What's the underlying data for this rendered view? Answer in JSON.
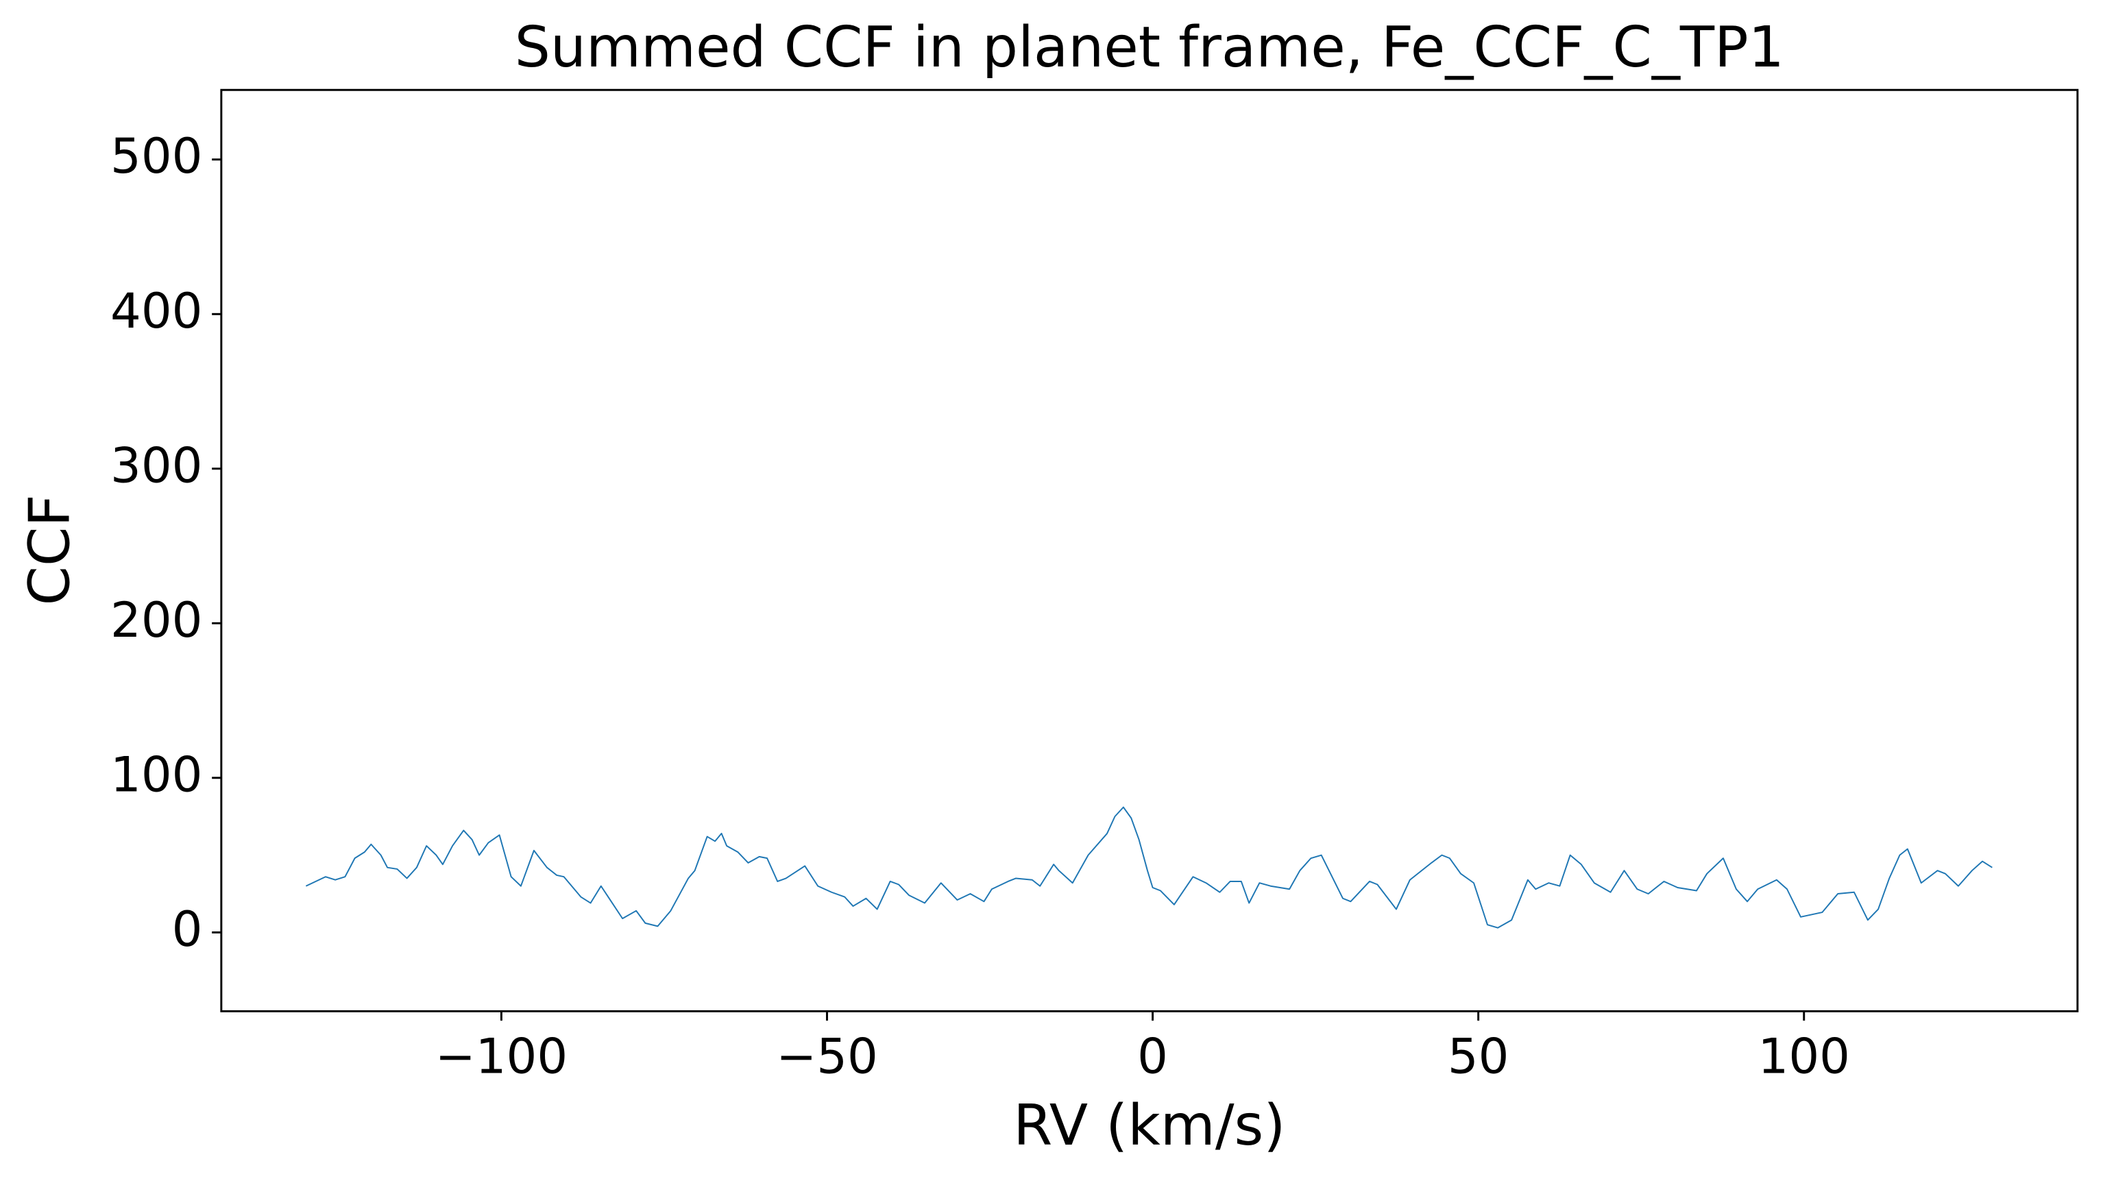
{
  "chart_data": {
    "type": "line",
    "title": "Summed CCF in planet frame, Fe_CCF_C_TP1",
    "xlabel": "RV (km/s)",
    "ylabel": "CCF",
    "x": [
      -130,
      -128.5,
      -127,
      -125.5,
      -124,
      -122.5,
      -121,
      -120,
      -118.5,
      -117.5,
      -116,
      -114.5,
      -113,
      -111.5,
      -110,
      -109,
      -107.5,
      -105.8,
      -104.5,
      -103.4,
      -102,
      -100.3,
      -98.5,
      -97,
      -95,
      -93,
      -91.5,
      -90.4,
      -87.8,
      -86.3,
      -84.7,
      -81.4,
      -79.3,
      -77.9,
      -76,
      -74,
      -71.3,
      -70.3,
      -68.4,
      -67.2,
      -66.2,
      -65.4,
      -63.7,
      -62.1,
      -60.4,
      -59.2,
      -57.6,
      -56.3,
      -53.4,
      -51.4,
      -49.3,
      -47.3,
      -46,
      -44,
      -42.3,
      -40.3,
      -39,
      -37.4,
      -35,
      -32.5,
      -30,
      -28,
      -25.9,
      -24.7,
      -22.2,
      -21,
      -18.5,
      -17.3,
      -15.2,
      -14.4,
      -12.3,
      -9.9,
      -7,
      -5.8,
      -4.5,
      -3.3,
      -2.1,
      -0.8,
      0,
      1.2,
      3.3,
      6.2,
      8.2,
      10.3,
      11.9,
      13.6,
      14.8,
      16.4,
      18.1,
      21,
      22.6,
      24.3,
      25.9,
      29.2,
      30.4,
      33.3,
      34.5,
      37.4,
      39.5,
      42.8,
      44.4,
      45.6,
      47.3,
      49.3,
      51.4,
      53,
      55.1,
      57.6,
      58.8,
      60.8,
      62.5,
      64.1,
      65.8,
      67.8,
      70.3,
      72.4,
      74.4,
      76.1,
      78.5,
      80.6,
      83.5,
      85.1,
      87.6,
      89.6,
      91.3,
      92.9,
      95.8,
      97.4,
      99.5,
      102.8,
      105.2,
      107.7,
      109.8,
      111.4,
      113.1,
      114.7,
      115.9,
      118,
      120.5,
      121.7,
      123.7,
      125.8,
      127.4,
      128.9
    ],
    "series": [
      {
        "color": "#1f77b4",
        "values": [
          30,
          33,
          36,
          34,
          36,
          48,
          52,
          57,
          50,
          42,
          41,
          35,
          42,
          56,
          50,
          44,
          56,
          66,
          60,
          50,
          58,
          63,
          36,
          30,
          53,
          42,
          37,
          36,
          23,
          19,
          30,
          9,
          14,
          6,
          4,
          14,
          35,
          40,
          62,
          59,
          64,
          56,
          52,
          45,
          49,
          48,
          33,
          35,
          43,
          30,
          26,
          23,
          17,
          22,
          15,
          33,
          31,
          24,
          19,
          32,
          21,
          25,
          20,
          28,
          33,
          35,
          34,
          30,
          44,
          40,
          32,
          50,
          64,
          75,
          81,
          74,
          60,
          40,
          29,
          27,
          18,
          36,
          32,
          26,
          33,
          33,
          19,
          32,
          30,
          28,
          40,
          48,
          50,
          22,
          20,
          33,
          31,
          15,
          34,
          45,
          50,
          48,
          38,
          32,
          5,
          3,
          8,
          34,
          28,
          32,
          30,
          50,
          44,
          32,
          26,
          40,
          28,
          25,
          33,
          29,
          27,
          38,
          48,
          28,
          20,
          28,
          34,
          28,
          10,
          13,
          25,
          26,
          8,
          15,
          35,
          50,
          54,
          32,
          40,
          38,
          30,
          40,
          46,
          42
        ]
      }
    ],
    "xlim": [
      -143,
      142
    ],
    "ylim": [
      -51,
      545
    ],
    "xticks": [
      {
        "value": -100,
        "label": "−100"
      },
      {
        "value": -50,
        "label": "−50"
      },
      0,
      50,
      100
    ],
    "yticks": [
      0,
      100,
      200,
      300,
      400,
      500
    ]
  }
}
